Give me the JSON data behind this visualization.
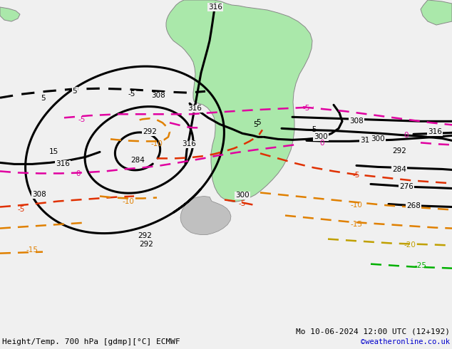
{
  "title_left": "Height/Temp. 700 hPa [gdmp][°C] ECMWF",
  "title_right": "Mo 10-06-2024 12:00 UTC (12+192)",
  "watermark": "©weatheronline.co.uk",
  "bg_color": "#f0f0f0",
  "land_color": "#aae8aa",
  "border_color": "#888888",
  "ocean_color": "#f0f0f0",
  "figsize": [
    6.34,
    4.9
  ],
  "dpi": 100,
  "font_size_title": 8,
  "font_size_label": 7.5,
  "font_size_watermark": 7.5,
  "black": "#000000",
  "magenta": "#e000a0",
  "red": "#e03000",
  "orange": "#e08000",
  "orange2": "#c0a000",
  "green": "#00b000",
  "cyan": "#00aaaa"
}
